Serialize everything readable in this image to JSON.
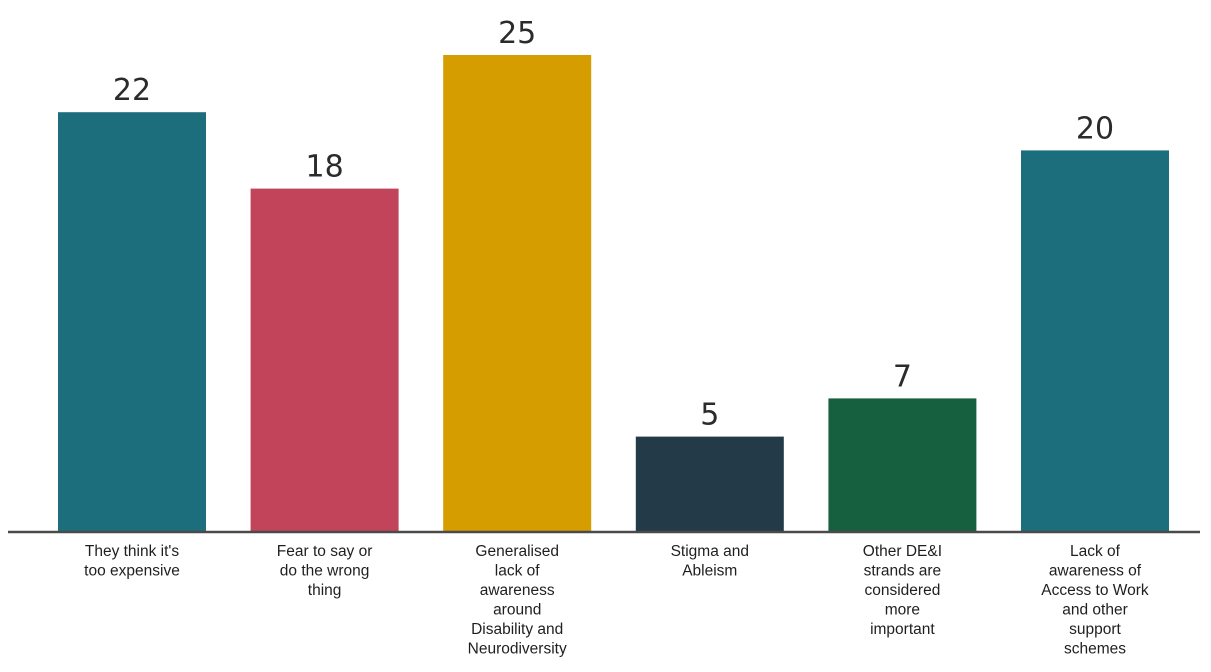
{
  "chart_data": {
    "type": "bar",
    "categories": [
      [
        "They think it's",
        "too expensive"
      ],
      [
        "Fear to say or",
        "do the wrong",
        "thing"
      ],
      [
        "Generalised",
        "lack of",
        "awareness",
        "around",
        "Disability and",
        "Neurodiversity"
      ],
      [
        "Stigma and",
        "Ableism"
      ],
      [
        "Other DE&I",
        "strands are",
        "considered",
        "more",
        "important"
      ],
      [
        "Lack of",
        "awareness of",
        "Access to Work",
        "and other",
        "support",
        "schemes"
      ]
    ],
    "values": [
      22,
      18,
      25,
      5,
      7,
      20
    ],
    "colors": [
      "#1c6e7d",
      "#c2445a",
      "#d69d00",
      "#233b48",
      "#17603f",
      "#1c6e7d"
    ],
    "value_labels": [
      "22",
      "18",
      "25",
      "5",
      "7",
      "20"
    ],
    "title": "",
    "xlabel": "",
    "ylabel": "",
    "ylim": [
      0,
      25
    ],
    "grid": false,
    "legend": "none"
  }
}
